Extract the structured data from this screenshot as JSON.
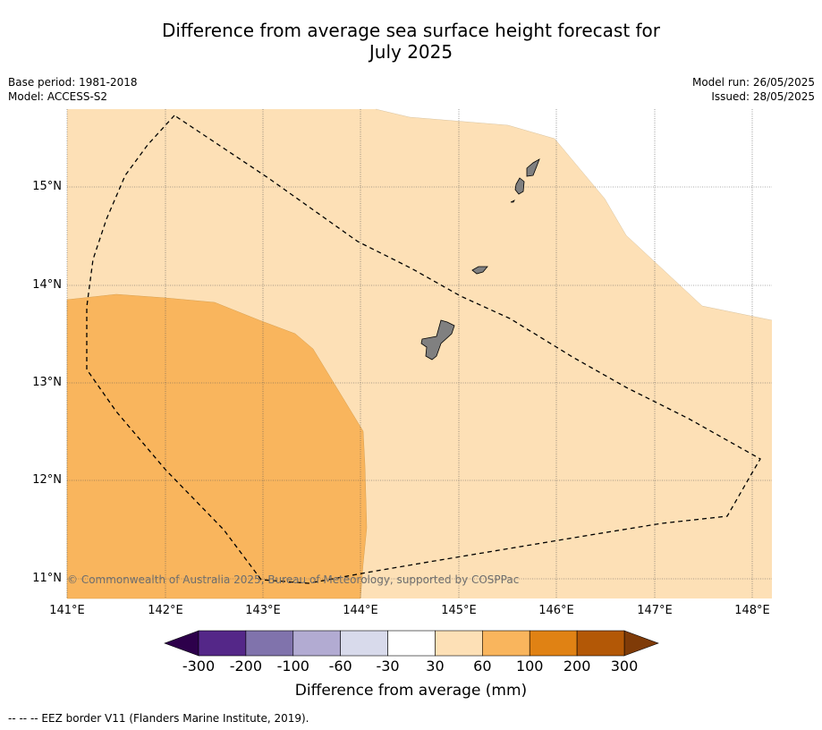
{
  "title_line1": "Difference from average sea surface height forecast for",
  "title_line2": "July 2025",
  "meta_left": {
    "base_period": "Base period: 1981-2018",
    "model": "Model: ACCESS-S2"
  },
  "meta_right": {
    "model_run": "Model run: 26/05/2025",
    "issued": "Issued: 28/05/2025"
  },
  "credit": "© Commonwealth of Australia 2025, Bureau of Meteorology, supported by COSPPac",
  "lon_labels": [
    "141°E",
    "142°E",
    "143°E",
    "144°E",
    "145°E",
    "146°E",
    "147°E",
    "148°E"
  ],
  "lat_labels": [
    "15°N",
    "14°N",
    "13°N",
    "12°N",
    "11°N"
  ],
  "colorbar": {
    "ticks": [
      "-300",
      "-200",
      "-100",
      "-60",
      "-30",
      "30",
      "60",
      "100",
      "200",
      "300"
    ],
    "colors": {
      "under": "#2d004b",
      "bins": [
        "#542788",
        "#8073ac",
        "#b2abd2",
        "#d8daeb",
        "#ffffff",
        "#fde0b6",
        "#f9b55d",
        "#e08214",
        "#b35806"
      ],
      "over": "#7f3b08"
    },
    "title": "Difference from average (mm)"
  },
  "map_colors": {
    "light_fill": "#fde0b6",
    "medium_fill": "#f9b55d",
    "land": "#808080"
  },
  "footer_note": "--  --  -- EEZ border V11 (Flanders Marine Institute, 2019)."
}
